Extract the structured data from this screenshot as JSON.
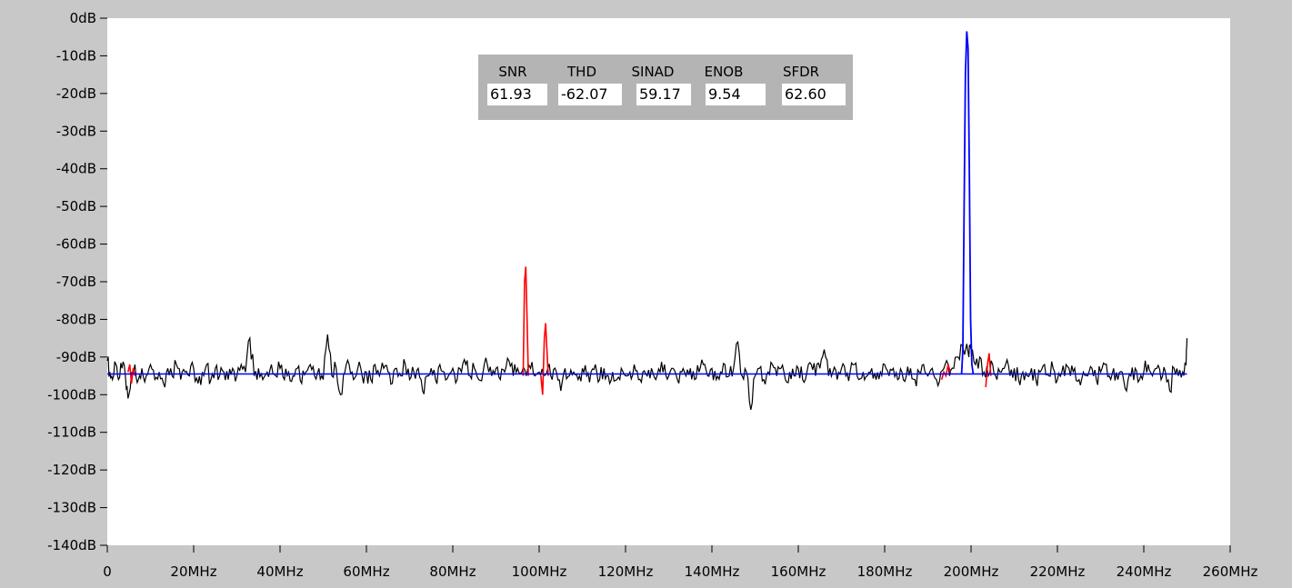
{
  "chart_data": {
    "type": "line",
    "xlabel": "",
    "ylabel": "",
    "xlim": [
      0,
      260
    ],
    "ylim": [
      -140,
      0
    ],
    "x_ticks": [
      "0",
      "20MHz",
      "40MHz",
      "60MHz",
      "80MHz",
      "100MHz",
      "120MHz",
      "140MHz",
      "160MHz",
      "180MHz",
      "200MHz",
      "220MHz",
      "240MHz",
      "260MHz"
    ],
    "y_ticks": [
      "0dB",
      "-10dB",
      "-20dB",
      "-30dB",
      "-40dB",
      "-50dB",
      "-60dB",
      "-70dB",
      "-80dB",
      "-90dB",
      "-100dB",
      "-110dB",
      "-120dB",
      "-130dB",
      "-140dB"
    ],
    "grid": false,
    "noise_floor_db": -94.5,
    "colors": {
      "spectrum": "#000000",
      "harmonics": "#ff0000",
      "fundamental": "#0000ff",
      "plot_bg": "#ffffff",
      "frame_bg": "#c8c8c8"
    },
    "series": [
      {
        "color": "#000000",
        "points": [
          [
            0,
            -91
          ],
          [
            0.6,
            -94
          ],
          [
            1.2,
            -96
          ],
          [
            2,
            -92
          ],
          [
            2.6,
            -96
          ],
          [
            3.4,
            -93
          ],
          [
            4.2,
            -95
          ],
          [
            4.8,
            -101
          ],
          [
            5.6,
            -94
          ],
          [
            6.4,
            -92
          ],
          [
            7.2,
            -96
          ],
          [
            8,
            -93
          ],
          [
            9,
            -95
          ],
          [
            10,
            -92
          ],
          [
            11,
            -96
          ],
          [
            12,
            -94
          ],
          [
            13,
            -97
          ],
          [
            14,
            -93
          ],
          [
            15,
            -95
          ],
          [
            16,
            -92
          ],
          [
            17,
            -96
          ],
          [
            18,
            -94
          ],
          [
            19,
            -95
          ],
          [
            20,
            -93
          ],
          [
            21,
            -97
          ],
          [
            22,
            -94
          ],
          [
            23,
            -92
          ],
          [
            24,
            -96
          ],
          [
            25,
            -93
          ],
          [
            26,
            -95
          ],
          [
            27,
            -94
          ],
          [
            28,
            -96
          ],
          [
            29,
            -93
          ],
          [
            30,
            -95
          ],
          [
            31,
            -92
          ],
          [
            32,
            -94
          ],
          [
            33,
            -85
          ],
          [
            34,
            -95
          ],
          [
            35,
            -93
          ],
          [
            36,
            -96
          ],
          [
            37,
            -94
          ],
          [
            38,
            -92
          ],
          [
            39,
            -95
          ],
          [
            40,
            -93
          ],
          [
            41,
            -96
          ],
          [
            42,
            -94
          ],
          [
            43,
            -95
          ],
          [
            44,
            -93
          ],
          [
            45,
            -97
          ],
          [
            46,
            -94
          ],
          [
            47,
            -92
          ],
          [
            48,
            -95
          ],
          [
            49,
            -93
          ],
          [
            50,
            -96
          ],
          [
            51,
            -84
          ],
          [
            52,
            -95
          ],
          [
            53,
            -93
          ],
          [
            54,
            -100
          ],
          [
            55,
            -94
          ],
          [
            56,
            -92
          ],
          [
            57,
            -96
          ],
          [
            58,
            -93
          ],
          [
            59,
            -95
          ],
          [
            60,
            -94
          ],
          [
            61,
            -96
          ],
          [
            62,
            -92
          ],
          [
            63,
            -95
          ],
          [
            64,
            -93
          ],
          [
            65,
            -94
          ],
          [
            66,
            -97
          ],
          [
            67,
            -93
          ],
          [
            68,
            -95
          ],
          [
            69,
            -92
          ],
          [
            70,
            -96
          ],
          [
            71,
            -94
          ],
          [
            72,
            -93
          ],
          [
            73,
            -99
          ],
          [
            74,
            -95
          ],
          [
            75,
            -93
          ],
          [
            76,
            -96
          ],
          [
            77,
            -92
          ],
          [
            78,
            -94
          ],
          [
            79,
            -95
          ],
          [
            80,
            -93
          ],
          [
            81,
            -96
          ],
          [
            82,
            -94
          ],
          [
            83,
            -92
          ],
          [
            84,
            -95
          ],
          [
            85,
            -93
          ],
          [
            86,
            -96
          ],
          [
            87,
            -94
          ],
          [
            88,
            -92
          ],
          [
            89,
            -95
          ],
          [
            90,
            -93
          ],
          [
            91,
            -96
          ],
          [
            92,
            -94
          ],
          [
            93,
            -91
          ],
          [
            94,
            -95
          ],
          [
            95,
            -93
          ],
          [
            96,
            -94
          ],
          [
            97,
            -95
          ],
          [
            98,
            -93
          ],
          [
            99,
            -95
          ],
          [
            100,
            -94
          ],
          [
            101,
            -95
          ],
          [
            102,
            -93
          ],
          [
            103,
            -96
          ],
          [
            104,
            -94
          ],
          [
            105,
            -99
          ],
          [
            106,
            -93
          ],
          [
            107,
            -95
          ],
          [
            108,
            -94
          ],
          [
            109,
            -96
          ],
          [
            110,
            -93
          ],
          [
            111,
            -95
          ],
          [
            112,
            -94
          ],
          [
            113,
            -92
          ],
          [
            114,
            -96
          ],
          [
            115,
            -93
          ],
          [
            116,
            -95
          ],
          [
            117,
            -94
          ],
          [
            118,
            -96
          ],
          [
            119,
            -93
          ],
          [
            120,
            -95
          ],
          [
            121,
            -94
          ],
          [
            122,
            -92
          ],
          [
            123,
            -96
          ],
          [
            124,
            -94
          ],
          [
            125,
            -95
          ],
          [
            126,
            -93
          ],
          [
            127,
            -96
          ],
          [
            128,
            -94
          ],
          [
            129,
            -92
          ],
          [
            130,
            -95
          ],
          [
            131,
            -93
          ],
          [
            132,
            -96
          ],
          [
            133,
            -94
          ],
          [
            134,
            -95
          ],
          [
            135,
            -93
          ],
          [
            136,
            -96
          ],
          [
            137,
            -94
          ],
          [
            138,
            -92
          ],
          [
            139,
            -95
          ],
          [
            140,
            -93
          ],
          [
            141,
            -96
          ],
          [
            142,
            -94
          ],
          [
            143,
            -92
          ],
          [
            144,
            -95
          ],
          [
            145,
            -93
          ],
          [
            146,
            -86
          ],
          [
            147,
            -95
          ],
          [
            148,
            -94
          ],
          [
            149,
            -104
          ],
          [
            150,
            -95
          ],
          [
            151,
            -93
          ],
          [
            152,
            -96
          ],
          [
            153,
            -94
          ],
          [
            154,
            -92
          ],
          [
            155,
            -95
          ],
          [
            156,
            -93
          ],
          [
            157,
            -96
          ],
          [
            158,
            -94
          ],
          [
            159,
            -95
          ],
          [
            160,
            -93
          ],
          [
            161,
            -96
          ],
          [
            162,
            -94
          ],
          [
            163,
            -92
          ],
          [
            164,
            -95
          ],
          [
            165,
            -93
          ],
          [
            166,
            -88
          ],
          [
            167,
            -95
          ],
          [
            168,
            -94
          ],
          [
            169,
            -96
          ],
          [
            170,
            -93
          ],
          [
            171,
            -95
          ],
          [
            172,
            -94
          ],
          [
            173,
            -92
          ],
          [
            174,
            -96
          ],
          [
            175,
            -94
          ],
          [
            176,
            -95
          ],
          [
            177,
            -93
          ],
          [
            178,
            -96
          ],
          [
            179,
            -94
          ],
          [
            180,
            -92
          ],
          [
            181,
            -95
          ],
          [
            182,
            -93
          ],
          [
            183,
            -96
          ],
          [
            184,
            -94
          ],
          [
            185,
            -95
          ],
          [
            186,
            -93
          ],
          [
            187,
            -96
          ],
          [
            188,
            -94
          ],
          [
            189,
            -92
          ],
          [
            190,
            -95
          ],
          [
            191,
            -93
          ],
          [
            192,
            -96
          ],
          [
            193,
            -94
          ],
          [
            194,
            -92
          ],
          [
            195,
            -95
          ],
          [
            196,
            -93
          ],
          [
            197,
            -90
          ],
          [
            198,
            -87
          ],
          [
            199.5,
            -90
          ],
          [
            200,
            -88
          ],
          [
            201,
            -92
          ],
          [
            202,
            -90
          ],
          [
            203,
            -94
          ],
          [
            204,
            -95
          ],
          [
            205,
            -92
          ],
          [
            206,
            -96
          ],
          [
            207,
            -94
          ],
          [
            208,
            -92
          ],
          [
            209,
            -95
          ],
          [
            210,
            -93
          ],
          [
            211,
            -96
          ],
          [
            212,
            -94
          ],
          [
            213,
            -95
          ],
          [
            214,
            -93
          ],
          [
            215,
            -96
          ],
          [
            216,
            -94
          ],
          [
            217,
            -92
          ],
          [
            218,
            -95
          ],
          [
            219,
            -93
          ],
          [
            220,
            -96
          ],
          [
            221,
            -94
          ],
          [
            222,
            -92
          ],
          [
            223,
            -95
          ],
          [
            224,
            -93
          ],
          [
            225,
            -96
          ],
          [
            226,
            -94
          ],
          [
            227,
            -95
          ],
          [
            228,
            -93
          ],
          [
            229,
            -96
          ],
          [
            230,
            -94
          ],
          [
            231,
            -92
          ],
          [
            232,
            -95
          ],
          [
            233,
            -93
          ],
          [
            234,
            -96
          ],
          [
            235,
            -94
          ],
          [
            236,
            -99
          ],
          [
            237,
            -95
          ],
          [
            238,
            -93
          ],
          [
            239,
            -96
          ],
          [
            240,
            -94
          ],
          [
            241,
            -92
          ],
          [
            242,
            -95
          ],
          [
            243,
            -93
          ],
          [
            244,
            -96
          ],
          [
            245,
            -94
          ],
          [
            246,
            -99
          ],
          [
            247,
            -93
          ],
          [
            248,
            -95
          ],
          [
            249,
            -94
          ],
          [
            249.8,
            -92
          ],
          [
            250,
            -85
          ]
        ]
      },
      {
        "color": "#ff0000",
        "segments": [
          [
            [
              4.8,
              -94
            ],
            [
              5.2,
              -92
            ],
            [
              5.6,
              -97
            ],
            [
              6.0,
              -93
            ],
            [
              6.4,
              -95
            ]
          ],
          [
            [
              96.3,
              -95
            ],
            [
              96.6,
              -70
            ],
            [
              96.9,
              -66
            ],
            [
              97.2,
              -80
            ],
            [
              97.5,
              -95
            ]
          ],
          [
            [
              100.4,
              -95
            ],
            [
              100.8,
              -100
            ],
            [
              101.2,
              -85
            ],
            [
              101.5,
              -81
            ],
            [
              101.8,
              -88
            ],
            [
              102.1,
              -95
            ]
          ],
          [
            [
              193.2,
              -96
            ],
            [
              193.7,
              -94
            ],
            [
              194.2,
              -95
            ],
            [
              194.7,
              -92
            ],
            [
              195.2,
              -94
            ]
          ],
          [
            [
              203.4,
              -98
            ],
            [
              203.8,
              -92
            ],
            [
              204.2,
              -89
            ],
            [
              204.6,
              -95
            ]
          ]
        ]
      },
      {
        "color": "#0000ff",
        "noise_floor": [
          [
            0,
            -94.5
          ],
          [
            250,
            -94.5
          ]
        ],
        "peak": [
          [
            197.8,
            -94.5
          ],
          [
            198.1,
            -88
          ],
          [
            198.4,
            -50
          ],
          [
            198.7,
            -15
          ],
          [
            199.0,
            -3.5
          ],
          [
            199.3,
            -8
          ],
          [
            199.6,
            -40
          ],
          [
            199.9,
            -80
          ],
          [
            200.2,
            -92
          ],
          [
            200.5,
            -94.5
          ]
        ]
      }
    ]
  },
  "metrics": {
    "headers": [
      "SNR",
      "THD",
      "SINAD",
      "ENOB",
      "SFDR"
    ],
    "values": [
      "61.93",
      "-62.07",
      "59.17",
      "9.54",
      "62.60"
    ]
  }
}
